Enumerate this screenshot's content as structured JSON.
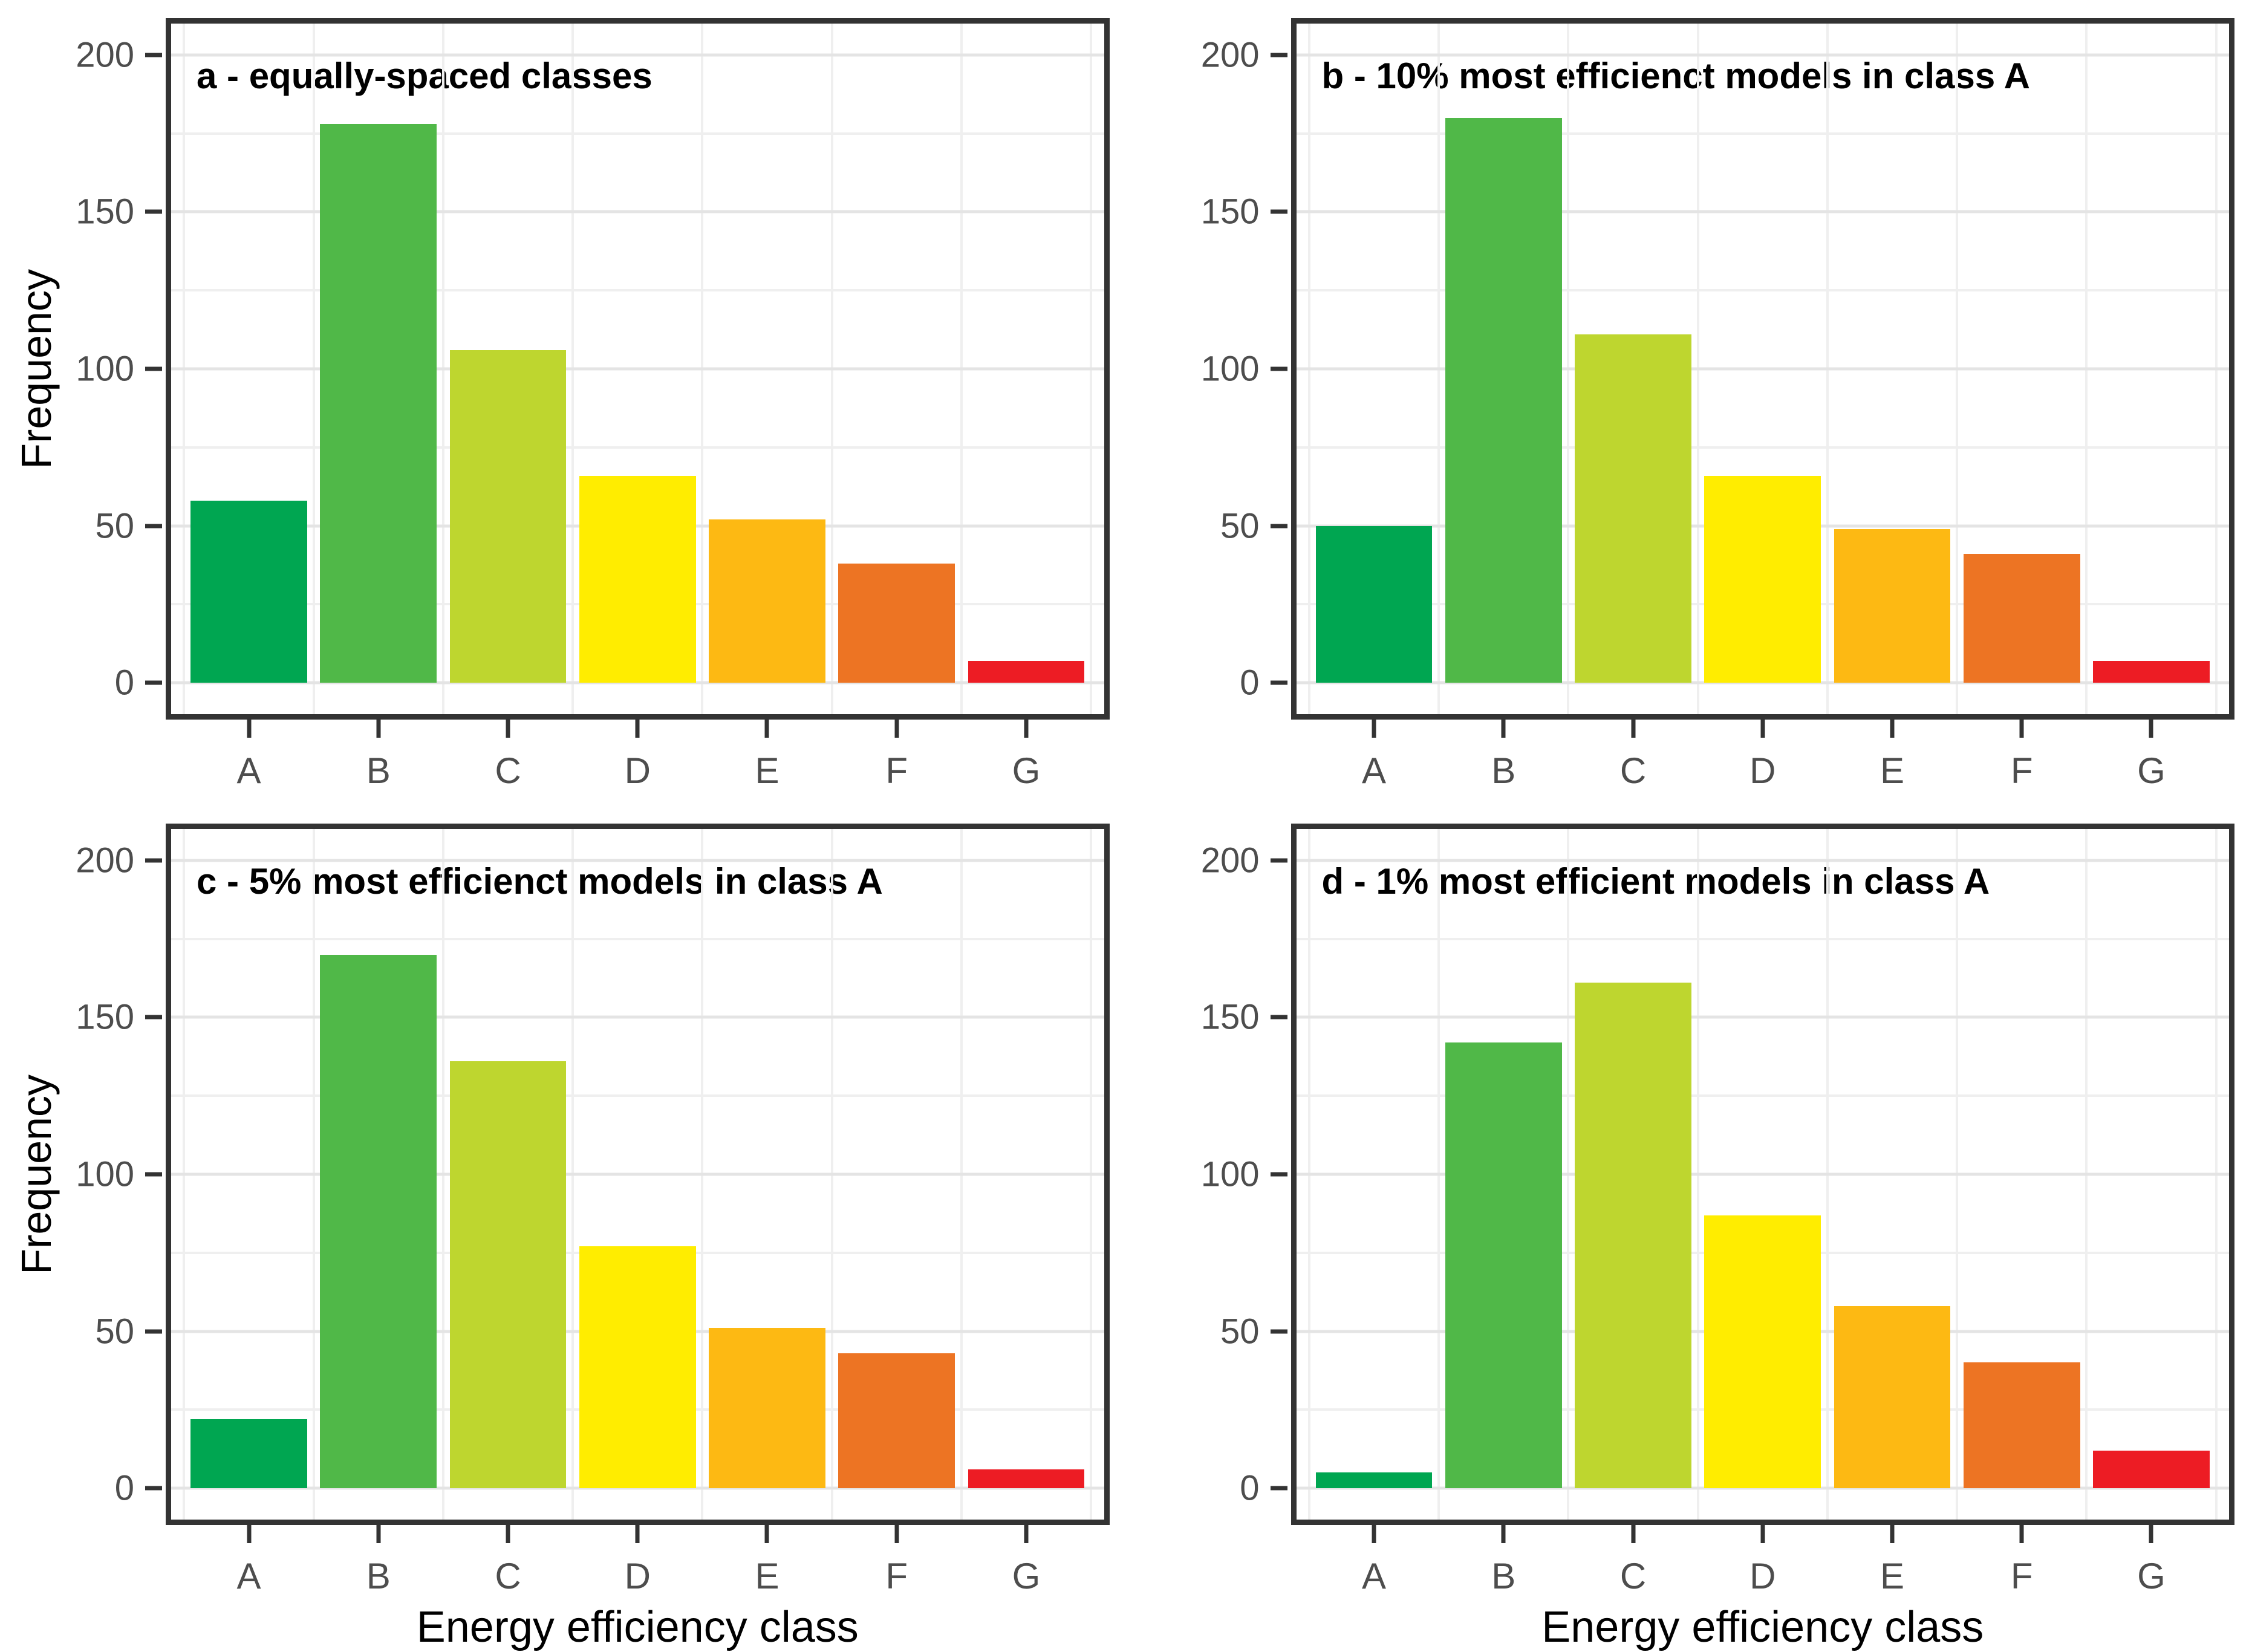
{
  "categories": [
    "A",
    "B",
    "C",
    "D",
    "E",
    "F",
    "G"
  ],
  "colors": {
    "A": "#00a651",
    "B": "#50b848",
    "C": "#bed62f",
    "D": "#ffed00",
    "E": "#fdb913",
    "F": "#ed7423",
    "G": "#ed1c24"
  },
  "y_axis": {
    "label": "Frequency",
    "tick_values": [
      0,
      50,
      100,
      150,
      200
    ],
    "tick_labels": [
      "0",
      "50",
      "100",
      "150",
      "200"
    ],
    "minor_tick_values": [
      25,
      75,
      125,
      175
    ],
    "domain": [
      -10,
      210
    ],
    "grid": "on"
  },
  "x_axis": {
    "label": "Energy efficiency class"
  },
  "chart_data": [
    {
      "type": "bar",
      "panel": "a",
      "title": "a - equally-spaced classes",
      "categories": [
        "A",
        "B",
        "C",
        "D",
        "E",
        "F",
        "G"
      ],
      "values": [
        58,
        178,
        106,
        66,
        52,
        38,
        7
      ],
      "ylabel": "Frequency",
      "xlabel": "",
      "ylim": [
        -10,
        210
      ],
      "legend": "none"
    },
    {
      "type": "bar",
      "panel": "b",
      "title": "b - 10% most efficienct models in class A",
      "categories": [
        "A",
        "B",
        "C",
        "D",
        "E",
        "F",
        "G"
      ],
      "values": [
        50,
        180,
        111,
        66,
        49,
        41,
        7
      ],
      "ylabel": "",
      "xlabel": "",
      "ylim": [
        -10,
        210
      ],
      "legend": "none"
    },
    {
      "type": "bar",
      "panel": "c",
      "title": "c - 5% most efficienct models in class A",
      "categories": [
        "A",
        "B",
        "C",
        "D",
        "E",
        "F",
        "G"
      ],
      "values": [
        22,
        170,
        136,
        77,
        51,
        43,
        6
      ],
      "ylabel": "Frequency",
      "xlabel": "Energy efficiency class",
      "ylim": [
        -10,
        210
      ],
      "legend": "none"
    },
    {
      "type": "bar",
      "panel": "d",
      "title": "d - 1% most efficient models in class A",
      "categories": [
        "A",
        "B",
        "C",
        "D",
        "E",
        "F",
        "G"
      ],
      "values": [
        5,
        142,
        161,
        87,
        58,
        40,
        12
      ],
      "ylabel": "",
      "xlabel": "Energy efficiency class",
      "ylim": [
        -10,
        210
      ],
      "legend": "none"
    }
  ]
}
